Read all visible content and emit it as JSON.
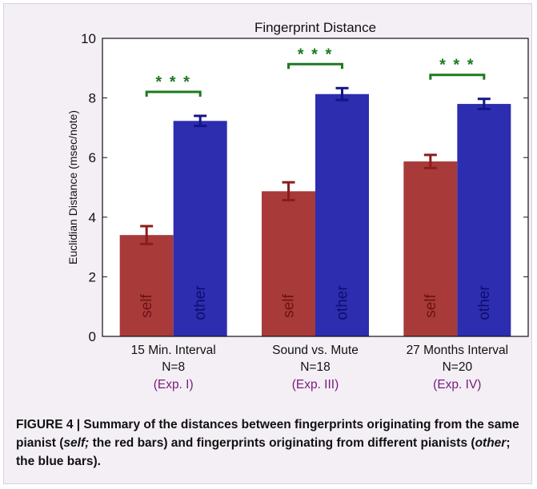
{
  "chart_data": {
    "type": "bar",
    "title": "Fingerprint Distance",
    "ylabel": "Euclidian Distance (msec/note)",
    "ylim": [
      0,
      10
    ],
    "yticks": [
      "0",
      "2",
      "4",
      "6",
      "8",
      "10"
    ],
    "groups": [
      {
        "label": "15 Min. Interval",
        "n": "N=8",
        "exp": "(Exp. I)",
        "significance": "***"
      },
      {
        "label": "Sound vs. Mute",
        "n": "N=18",
        "exp": "(Exp. III)",
        "significance": "***"
      },
      {
        "label": "27 Months Interval",
        "n": "N=20",
        "exp": "(Exp. IV)",
        "significance": "***"
      }
    ],
    "series": [
      {
        "name": "self",
        "color": "#a83a3a",
        "values": [
          3.4,
          4.87,
          5.87
        ],
        "errors": [
          0.3,
          0.3,
          0.22
        ]
      },
      {
        "name": "other",
        "color": "#2d2db0",
        "values": [
          7.23,
          8.13,
          7.8
        ],
        "errors": [
          0.17,
          0.2,
          0.17
        ]
      }
    ],
    "error_bar_colors": {
      "self": "#8b1c1c",
      "other": "#14148a"
    },
    "significance_color": "#1e7a1e",
    "exp_label_color": "#7a1a7a",
    "grid": false
  },
  "caption": {
    "prefix": "FIGURE 4 | Summary of the distances between fingerprints originating from the same pianist (",
    "self_word": "self;",
    "middle": " the red bars) and fingerprints originating from different pianists (",
    "other_word": "other",
    "suffix": "; the blue bars)."
  }
}
